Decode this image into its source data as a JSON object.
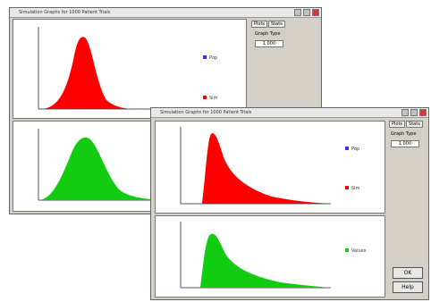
{
  "window1": {
    "title": "Simulation Graphs for 1000 Patient Trials",
    "tabs": [
      "Plots",
      "Stats"
    ],
    "panel_label": "Graph Type",
    "field": "1.000",
    "legend": [
      "Pop",
      "Sim"
    ]
  },
  "window2": {
    "title": "Simulation Graphs for 1000 Patient Trials",
    "tabs": [
      "Plots",
      "Stats"
    ],
    "panel_label": "Graph Type",
    "field": "1.000",
    "legend": [
      "Pop",
      "Sim",
      "Values"
    ],
    "buttons": [
      "OK",
      "Help"
    ]
  }
}
